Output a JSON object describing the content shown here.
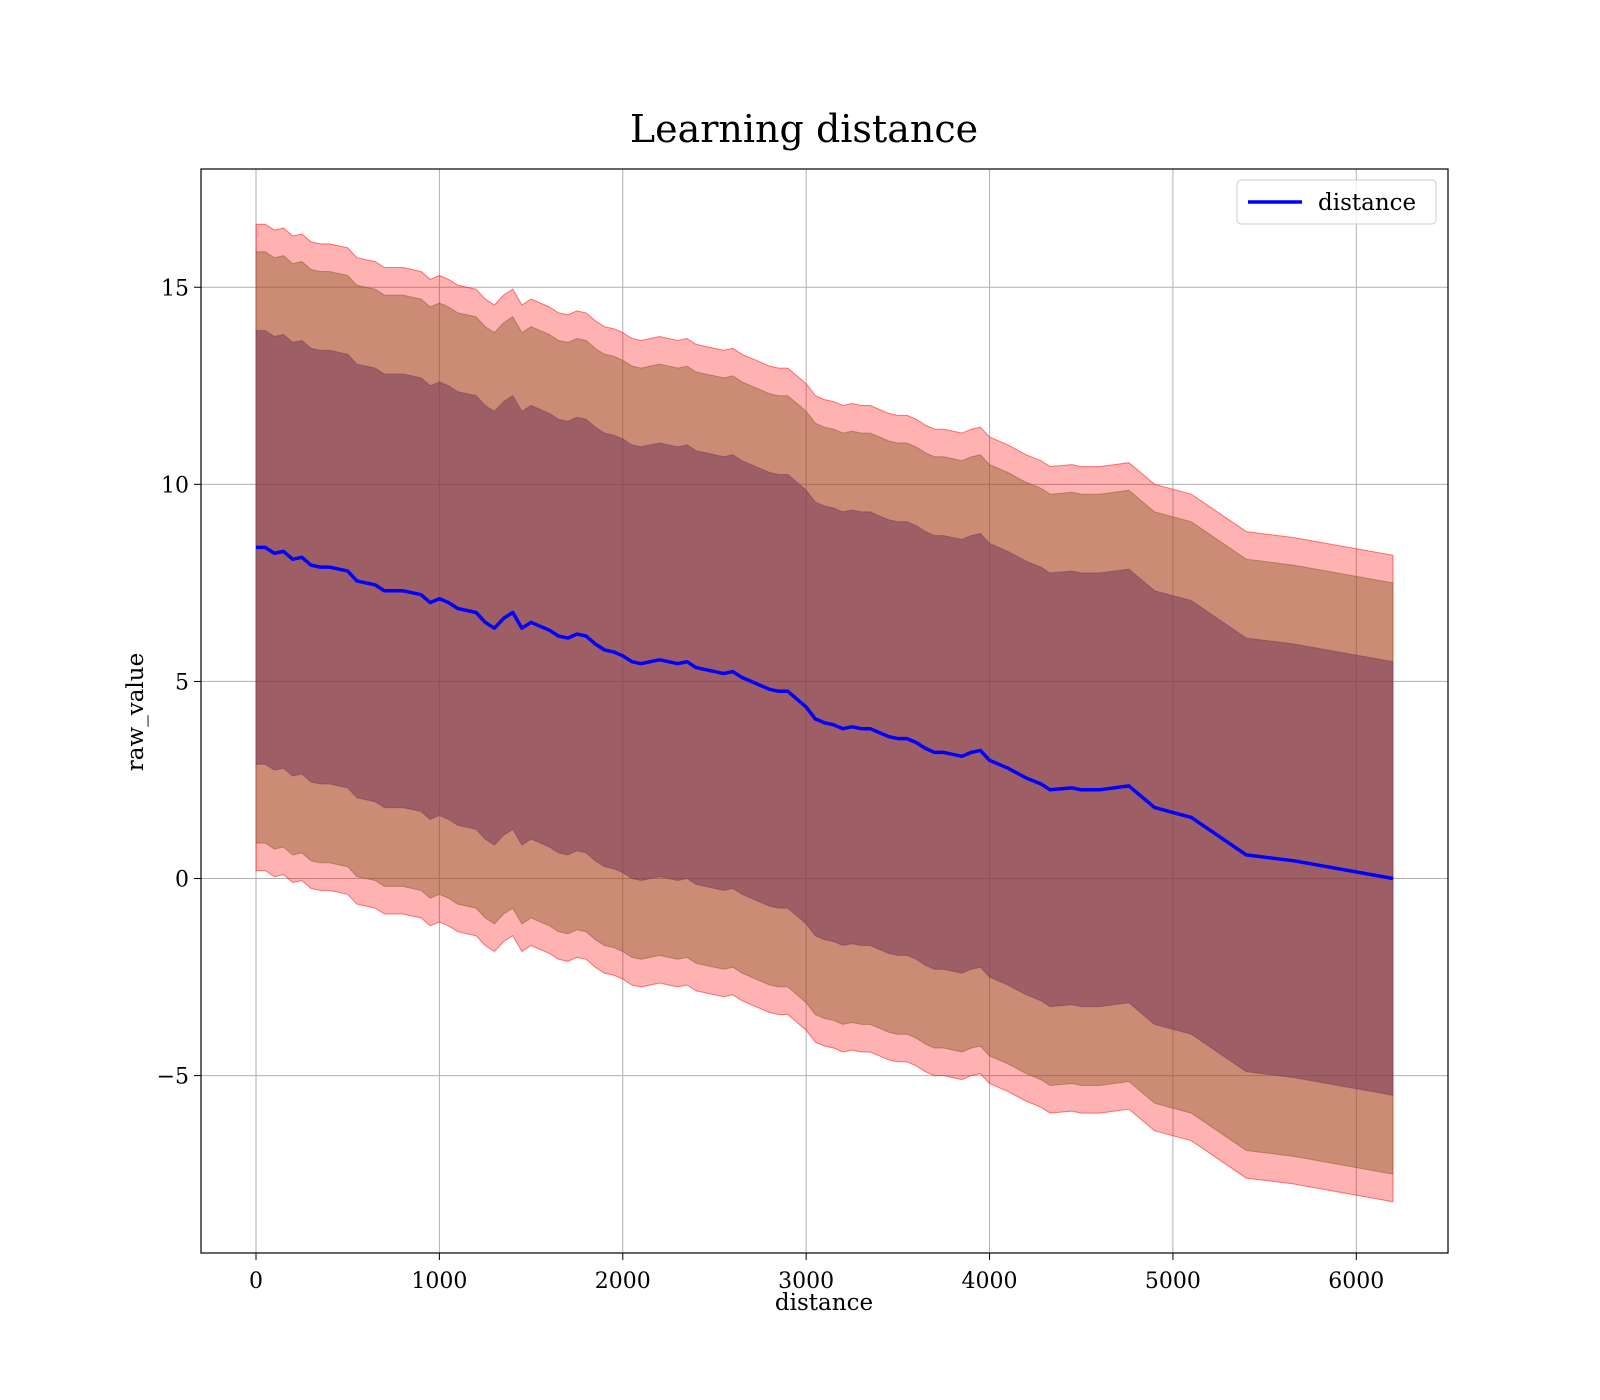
{
  "chart_data": {
    "type": "line",
    "title": "Learning distance",
    "xlabel": "distance",
    "ylabel": "raw_value",
    "xlim": [
      -300,
      6500
    ],
    "ylim": [
      -9.5,
      18
    ],
    "xticks": [
      0,
      1000,
      2000,
      3000,
      4000,
      5000,
      6000
    ],
    "xtick_labels": [
      "0",
      "1000",
      "2000",
      "3000",
      "4000",
      "5000",
      "6000"
    ],
    "yticks": [
      -5,
      0,
      5,
      10,
      15
    ],
    "ytick_labels": [
      "−5",
      "0",
      "5",
      "10",
      "15"
    ],
    "grid": true,
    "legend_position": "top-right",
    "colors": {
      "line": "#0000ff",
      "band_outer": "#ff0000",
      "band_middle": "#8b5a2b",
      "band_inner": "#7a3a5a",
      "grid": "#b0b0b0"
    },
    "series": [
      {
        "name": "distance",
        "x": [
          0,
          50,
          100,
          150,
          200,
          250,
          300,
          350,
          400,
          450,
          500,
          550,
          600,
          650,
          700,
          750,
          800,
          850,
          900,
          950,
          1000,
          1050,
          1100,
          1150,
          1200,
          1250,
          1300,
          1350,
          1400,
          1450,
          1500,
          1550,
          1600,
          1650,
          1700,
          1750,
          1800,
          1850,
          1900,
          1950,
          2000,
          2050,
          2100,
          2150,
          2200,
          2250,
          2300,
          2350,
          2400,
          2450,
          2500,
          2550,
          2600,
          2650,
          2700,
          2750,
          2800,
          2850,
          2900,
          2950,
          3000,
          3050,
          3100,
          3150,
          3200,
          3250,
          3300,
          3350,
          3400,
          3450,
          3500,
          3550,
          3600,
          3650,
          3700,
          3750,
          3800,
          3850,
          3900,
          3950,
          4000,
          4100,
          4200,
          4280,
          4330,
          4450,
          4500,
          4600,
          4760,
          4900,
          5100,
          5400,
          5660,
          6200
        ],
        "y": [
          8.4,
          8.4,
          8.25,
          8.3,
          8.1,
          8.15,
          7.95,
          7.9,
          7.9,
          7.85,
          7.8,
          7.55,
          7.5,
          7.45,
          7.3,
          7.3,
          7.3,
          7.25,
          7.2,
          7.0,
          7.1,
          7.0,
          6.85,
          6.8,
          6.75,
          6.5,
          6.35,
          6.6,
          6.75,
          6.35,
          6.5,
          6.4,
          6.3,
          6.15,
          6.1,
          6.2,
          6.15,
          5.95,
          5.8,
          5.75,
          5.65,
          5.5,
          5.45,
          5.5,
          5.55,
          5.5,
          5.45,
          5.5,
          5.35,
          5.3,
          5.25,
          5.2,
          5.25,
          5.1,
          5.0,
          4.9,
          4.8,
          4.75,
          4.75,
          4.55,
          4.35,
          4.05,
          3.95,
          3.9,
          3.8,
          3.85,
          3.8,
          3.8,
          3.7,
          3.6,
          3.55,
          3.55,
          3.45,
          3.3,
          3.2,
          3.2,
          3.15,
          3.1,
          3.2,
          3.25,
          3.0,
          2.8,
          2.55,
          2.4,
          2.25,
          2.3,
          2.25,
          2.25,
          2.35,
          1.8,
          1.55,
          0.6,
          0.45,
          0.0
        ],
        "bands": [
          {
            "lower_offset": -8.2,
            "upper_offset": 8.2
          },
          {
            "lower_offset": -7.5,
            "upper_offset": 7.5
          },
          {
            "lower_offset": -5.5,
            "upper_offset": 5.5
          }
        ]
      }
    ]
  }
}
